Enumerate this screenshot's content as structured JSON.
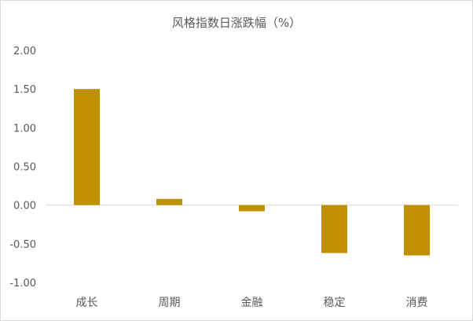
{
  "chart_data": {
    "type": "bar",
    "title": "风格指数日涨跌幅（%）",
    "categories": [
      "成长",
      "周期",
      "金融",
      "稳定",
      "消费"
    ],
    "values": [
      1.5,
      0.08,
      -0.08,
      -0.62,
      -0.65
    ],
    "ylim": [
      -1.0,
      2.0
    ],
    "yticks": [
      "2.00",
      "1.50",
      "1.00",
      "0.50",
      "0.00",
      "-0.50",
      "-1.00"
    ],
    "ytick_values": [
      2.0,
      1.5,
      1.0,
      0.5,
      0.0,
      -0.5,
      -1.0
    ],
    "xlabel": "",
    "ylabel": "",
    "grid": false,
    "legend": "none",
    "bar_color": "#C09000",
    "axis_color": "#d9d9d9"
  }
}
